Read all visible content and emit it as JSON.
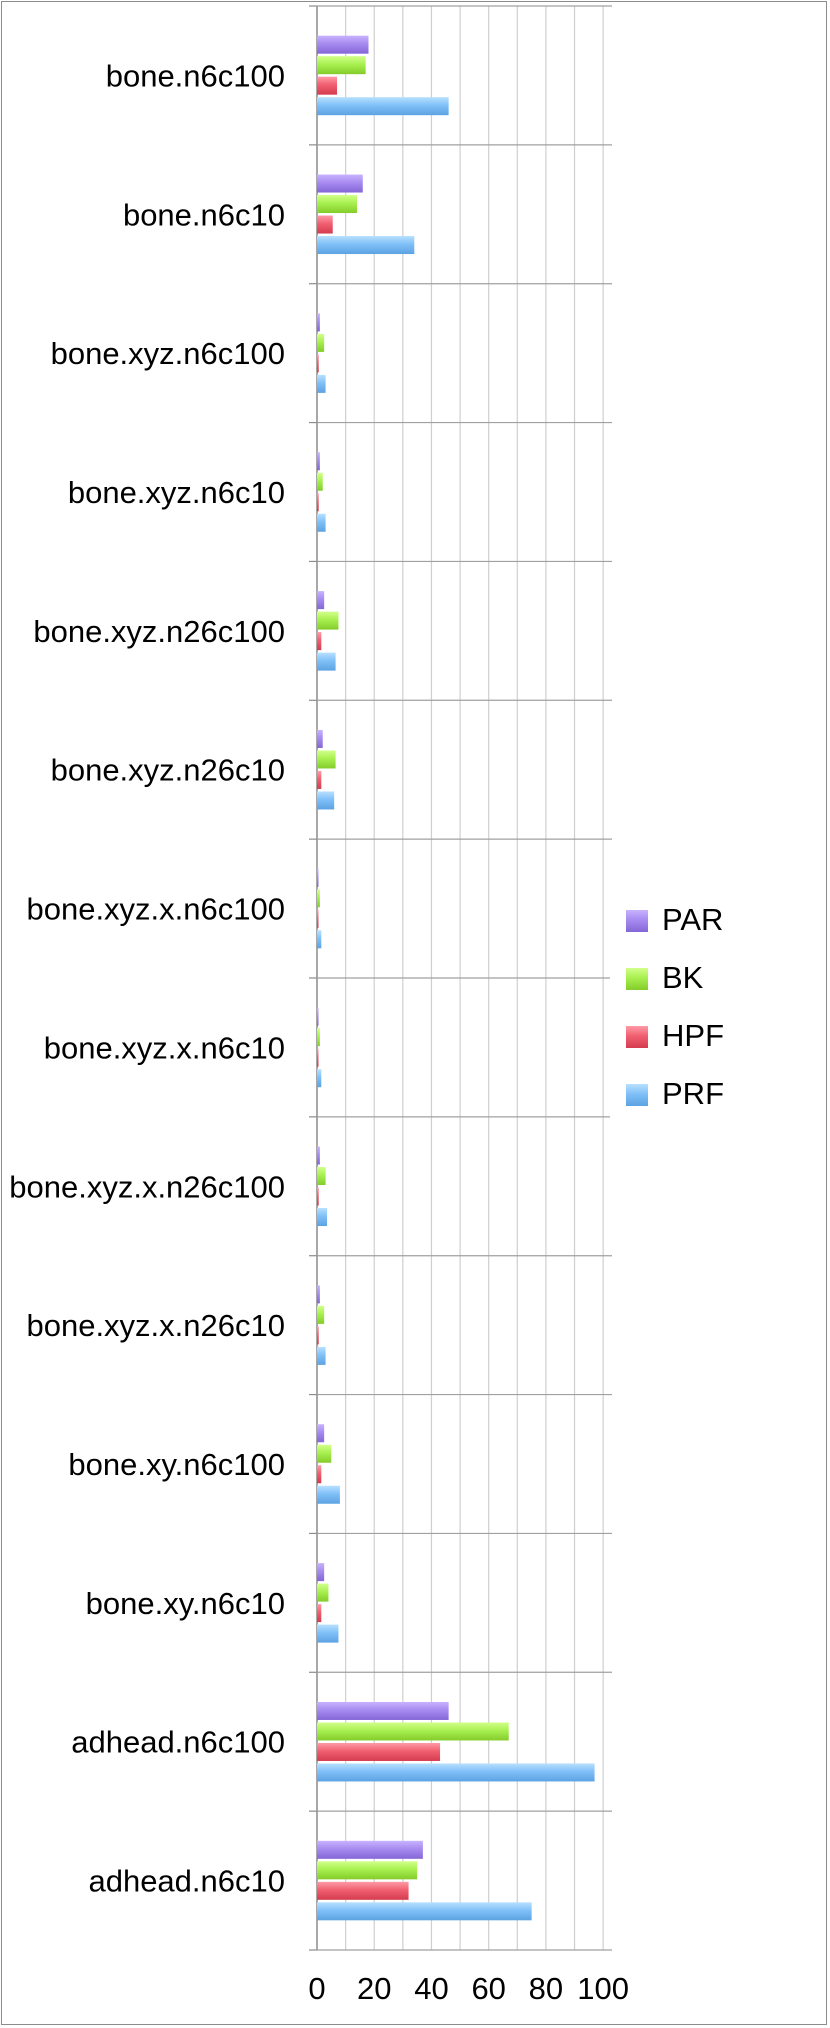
{
  "chart_data": {
    "type": "bar",
    "orientation": "horizontal",
    "title": "",
    "xlabel": "",
    "ylabel": "",
    "xlim": [
      0,
      100
    ],
    "x_ticks": [
      0,
      20,
      40,
      60,
      80,
      100
    ],
    "grid": true,
    "legend_position": "right",
    "categories": [
      "bone.n6c100",
      "bone.n6c10",
      "bone.xyz.n6c100",
      "bone.xyz.n6c10",
      "bone.xyz.n26c100",
      "bone.xyz.n26c10",
      "bone.xyz.x.n6c100",
      "bone.xyz.x.n6c10",
      "bone.xyz.x.n26c100",
      "bone.xyz.x.n26c10",
      "bone.xy.n6c100",
      "bone.xy.n6c10",
      "adhead.n6c100",
      "adhead.n6c10"
    ],
    "series": [
      {
        "name": "PAR",
        "color": "#a78bf0",
        "values": [
          18,
          16,
          1,
          1,
          2.5,
          2,
          0.3,
          0.3,
          1,
          1,
          2.5,
          2.5,
          46,
          37
        ]
      },
      {
        "name": "BK",
        "color": "#a8f050",
        "values": [
          17,
          14,
          2.5,
          2,
          7.5,
          6.5,
          1,
          1,
          3,
          2.5,
          5,
          4,
          67,
          35
        ]
      },
      {
        "name": "HPF",
        "color": "#f06070",
        "values": [
          7,
          5.5,
          0.6,
          0.6,
          1.5,
          1.5,
          0.3,
          0.3,
          0.6,
          0.6,
          1.5,
          1.5,
          43,
          32
        ]
      },
      {
        "name": "PRF",
        "color": "#80c0f8",
        "values": [
          46,
          34,
          3,
          3,
          6.5,
          6,
          1.5,
          1.5,
          3.5,
          3,
          8,
          7.5,
          97,
          75
        ]
      }
    ]
  }
}
